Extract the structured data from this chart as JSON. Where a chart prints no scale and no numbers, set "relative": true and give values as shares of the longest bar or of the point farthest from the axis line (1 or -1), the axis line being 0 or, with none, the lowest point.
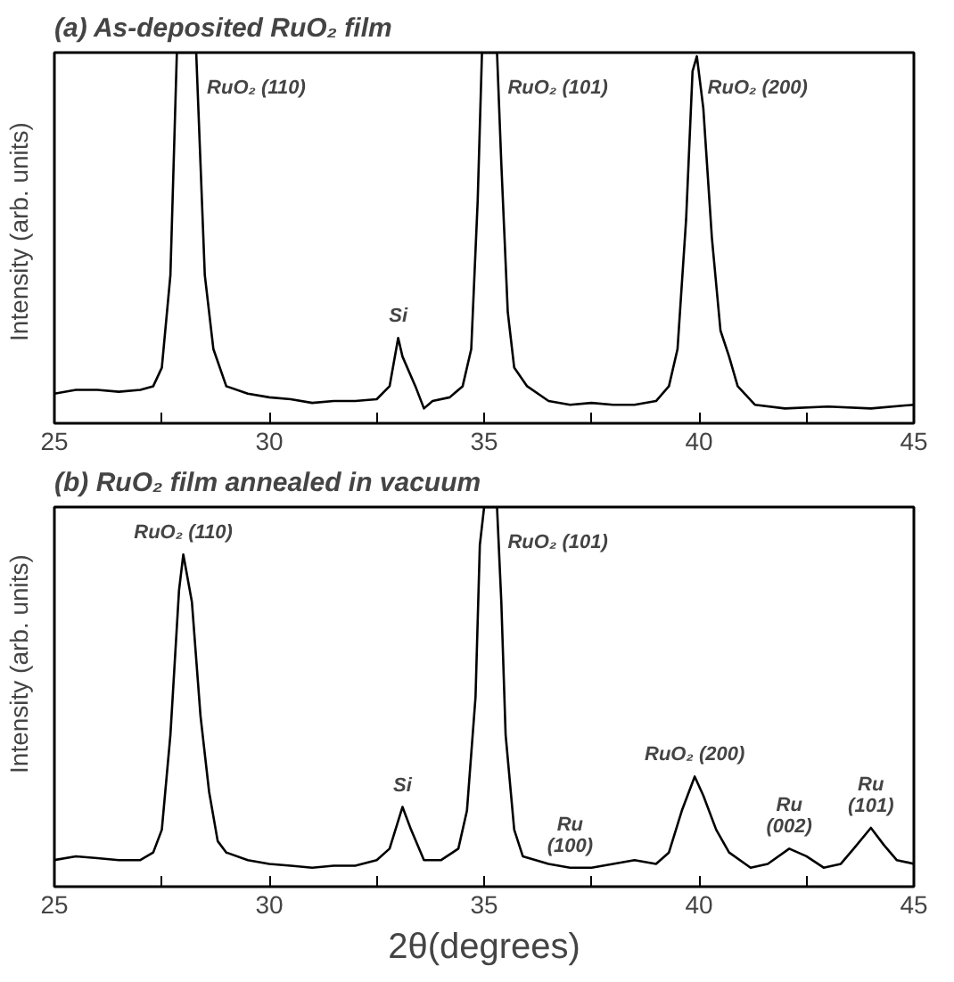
{
  "chart_data": [
    {
      "type": "line",
      "title": "(a) As-deposited RuO₂ film",
      "ylabel": "Intensity (arb. units)",
      "relative": true,
      "xlim": [
        25,
        45
      ],
      "xticks": [
        25,
        {
          "value": 27.5,
          "label": null
        },
        30,
        {
          "value": 32.5,
          "label": null
        },
        35,
        {
          "value": 37.5,
          "label": null
        },
        40,
        {
          "value": 42.5,
          "label": null
        },
        45
      ],
      "grid": false,
      "marker": "none",
      "line_style": "solid",
      "series": [
        {
          "color": "#000000",
          "x": [
            25.0,
            25.5,
            26,
            26.5,
            27,
            27.3,
            27.5,
            27.7,
            27.8,
            27.85,
            28.3,
            28.4,
            28.5,
            28.7,
            29,
            29.5,
            30,
            30.5,
            31,
            31.5,
            32,
            32.5,
            32.8,
            33.0,
            33.1,
            33.4,
            33.6,
            33.8,
            34.2,
            34.5,
            34.7,
            34.85,
            34.95,
            35.3,
            35.4,
            35.55,
            35.7,
            36,
            36.5,
            37,
            37.5,
            38,
            38.5,
            39,
            39.3,
            39.5,
            39.7,
            39.85,
            39.95,
            40.1,
            40.3,
            40.5,
            40.7,
            40.9,
            41.3,
            42,
            43,
            44,
            45
          ],
          "values": [
            0.08,
            0.09,
            0.09,
            0.085,
            0.09,
            0.1,
            0.15,
            0.4,
            0.8,
            1.0,
            1.0,
            0.7,
            0.4,
            0.2,
            0.1,
            0.08,
            0.07,
            0.065,
            0.055,
            0.06,
            0.06,
            0.065,
            0.1,
            0.23,
            0.18,
            0.1,
            0.04,
            0.06,
            0.07,
            0.1,
            0.2,
            0.6,
            1.0,
            1.0,
            0.7,
            0.3,
            0.15,
            0.1,
            0.06,
            0.05,
            0.055,
            0.05,
            0.05,
            0.06,
            0.1,
            0.2,
            0.55,
            0.95,
            0.99,
            0.85,
            0.5,
            0.25,
            0.18,
            0.1,
            0.05,
            0.04,
            0.045,
            0.04,
            0.05
          ]
        }
      ],
      "annotations": [
        {
          "text": "RuO₂ (110)",
          "x": 28.3,
          "y": 1.0
        },
        {
          "text": "Si",
          "x": 33.0,
          "y": 0.23
        },
        {
          "text": "RuO₂ (101)",
          "x": 35.3,
          "y": 1.0
        },
        {
          "text": "RuO₂ (200)",
          "x": 39.95,
          "y": 0.99
        }
      ]
    },
    {
      "type": "line",
      "title": "(b) RuO₂ film annealed in vacuum",
      "xlabel": "2θ(degrees)",
      "ylabel": "Intensity (arb. units)",
      "relative": true,
      "xlim": [
        25,
        45
      ],
      "xticks": [
        25,
        {
          "value": 27.5,
          "label": null
        },
        30,
        {
          "value": 32.5,
          "label": null
        },
        35,
        {
          "value": 37.5,
          "label": null
        },
        40,
        {
          "value": 42.5,
          "label": null
        },
        45
      ],
      "grid": false,
      "marker": "none",
      "line_style": "solid",
      "series": [
        {
          "color": "#000000",
          "x": [
            25,
            25.5,
            26,
            26.5,
            27,
            27.3,
            27.5,
            27.7,
            27.9,
            28.0,
            28.2,
            28.4,
            28.6,
            28.8,
            29,
            29.5,
            30,
            30.5,
            31,
            31.5,
            32,
            32.5,
            32.8,
            33.1,
            33.3,
            33.6,
            34,
            34.4,
            34.6,
            34.8,
            34.9,
            35.0,
            35.3,
            35.4,
            35.5,
            35.7,
            35.9,
            36.5,
            37,
            37.5,
            38,
            38.5,
            39,
            39.3,
            39.6,
            39.9,
            40.1,
            40.4,
            40.7,
            41.2,
            41.6,
            42.1,
            42.5,
            42.9,
            43.3,
            43.6,
            44.0,
            44.3,
            44.6,
            45
          ],
          "values": [
            0.07,
            0.08,
            0.075,
            0.07,
            0.07,
            0.09,
            0.15,
            0.4,
            0.78,
            0.875,
            0.75,
            0.45,
            0.25,
            0.12,
            0.09,
            0.07,
            0.06,
            0.055,
            0.05,
            0.055,
            0.055,
            0.07,
            0.1,
            0.21,
            0.15,
            0.07,
            0.07,
            0.1,
            0.2,
            0.5,
            0.9,
            1.0,
            1.0,
            0.75,
            0.4,
            0.15,
            0.08,
            0.06,
            0.05,
            0.05,
            0.06,
            0.07,
            0.06,
            0.09,
            0.2,
            0.29,
            0.24,
            0.15,
            0.09,
            0.05,
            0.06,
            0.1,
            0.08,
            0.05,
            0.06,
            0.1,
            0.155,
            0.11,
            0.07,
            0.06
          ]
        }
      ],
      "annotations": [
        {
          "text": "RuO₂ (110)",
          "x": 28.0,
          "y": 0.875
        },
        {
          "text": "Si",
          "x": 33.1,
          "y": 0.21
        },
        {
          "text": "RuO₂ (101)",
          "x": 35.3,
          "y": 1.0
        },
        {
          "text": "Ru\n(100)",
          "x": 37.0,
          "y": 0.05
        },
        {
          "text": "RuO₂ (200)",
          "x": 39.9,
          "y": 0.29
        },
        {
          "text": "Ru\n(002)",
          "x": 42.1,
          "y": 0.1
        },
        {
          "text": "Ru\n(101)",
          "x": 44.0,
          "y": 0.155
        }
      ]
    }
  ]
}
